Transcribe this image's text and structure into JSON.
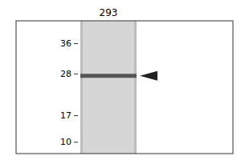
{
  "chart_data": {
    "type": "blot",
    "title": "293",
    "ylim": [
      7,
      42
    ],
    "yticks": [
      36,
      28,
      17,
      10
    ],
    "values": [
      27.5
    ],
    "color": "#555555",
    "tick_labels": "y"
  }
}
